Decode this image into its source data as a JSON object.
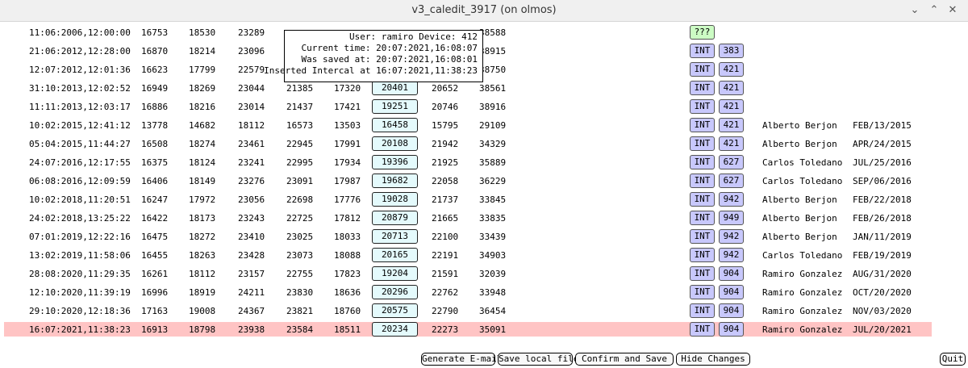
{
  "window": {
    "title": "v3_caledit_3917 (on olmos)",
    "minimize_glyph": "⌄",
    "maximize_glyph": "⌃",
    "close_glyph": "✕"
  },
  "rows": [
    {
      "date": "11:06:2006,12:00:00",
      "n1": "16753",
      "n2": "18530",
      "n3": "23289",
      "n4": "",
      "n5": "",
      "sel": "",
      "n6": "",
      "n7": "38588",
      "tag": "???",
      "dev": "",
      "name": "",
      "date2": ""
    },
    {
      "date": "21:06:2012,12:28:00",
      "n1": "16870",
      "n2": "18214",
      "n3": "23096",
      "n4": "",
      "n5": "",
      "sel": "",
      "n6": "",
      "n7": "38915",
      "tag": "INT",
      "dev": "383",
      "name": "",
      "date2": ""
    },
    {
      "date": "12:07:2012,12:01:36",
      "n1": "16623",
      "n2": "17799",
      "n3": "22579",
      "n4": "",
      "n5": "",
      "sel": "",
      "n6": "",
      "n7": "38750",
      "tag": "INT",
      "dev": "421",
      "name": "",
      "date2": ""
    },
    {
      "date": "31:10:2013,12:02:52",
      "n1": "16949",
      "n2": "18269",
      "n3": "23044",
      "n4": "21385",
      "n5": "17320",
      "sel": "20401",
      "n6": "20652",
      "n7": "38561",
      "tag": "INT",
      "dev": "421",
      "name": "",
      "date2": ""
    },
    {
      "date": "11:11:2013,12:03:17",
      "n1": "16886",
      "n2": "18216",
      "n3": "23014",
      "n4": "21437",
      "n5": "17421",
      "sel": "19251",
      "n6": "20746",
      "n7": "38916",
      "tag": "INT",
      "dev": "421",
      "name": "",
      "date2": ""
    },
    {
      "date": "10:02:2015,12:41:12",
      "n1": "13778",
      "n2": "14682",
      "n3": "18112",
      "n4": "16573",
      "n5": "13503",
      "sel": "16458",
      "n6": "15795",
      "n7": "29109",
      "tag": "INT",
      "dev": "421",
      "name": "Alberto Berjon",
      "date2": "FEB/13/2015"
    },
    {
      "date": "05:04:2015,11:44:27",
      "n1": "16508",
      "n2": "18274",
      "n3": "23461",
      "n4": "22945",
      "n5": "17991",
      "sel": "20108",
      "n6": "21942",
      "n7": "34329",
      "tag": "INT",
      "dev": "421",
      "name": "Alberto Berjon",
      "date2": "APR/24/2015"
    },
    {
      "date": "24:07:2016,12:17:55",
      "n1": "16375",
      "n2": "18124",
      "n3": "23241",
      "n4": "22995",
      "n5": "17934",
      "sel": "19396",
      "n6": "21925",
      "n7": "35889",
      "tag": "INT",
      "dev": "627",
      "name": "Carlos Toledano",
      "date2": "JUL/25/2016"
    },
    {
      "date": "06:08:2016,12:09:59",
      "n1": "16406",
      "n2": "18149",
      "n3": "23276",
      "n4": "23091",
      "n5": "17987",
      "sel": "19682",
      "n6": "22058",
      "n7": "36229",
      "tag": "INT",
      "dev": "627",
      "name": "Carlos Toledano",
      "date2": "SEP/06/2016"
    },
    {
      "date": "10:02:2018,11:20:51",
      "n1": "16247",
      "n2": "17972",
      "n3": "23056",
      "n4": "22698",
      "n5": "17776",
      "sel": "19028",
      "n6": "21737",
      "n7": "33845",
      "tag": "INT",
      "dev": "942",
      "name": "Alberto Berjon",
      "date2": "FEB/22/2018"
    },
    {
      "date": "24:02:2018,13:25:22",
      "n1": "16422",
      "n2": "18173",
      "n3": "23243",
      "n4": "22725",
      "n5": "17812",
      "sel": "20879",
      "n6": "21665",
      "n7": "33835",
      "tag": "INT",
      "dev": "949",
      "name": "Alberto Berjon",
      "date2": "FEB/26/2018"
    },
    {
      "date": "07:01:2019,12:22:16",
      "n1": "16475",
      "n2": "18272",
      "n3": "23410",
      "n4": "23025",
      "n5": "18033",
      "sel": "20713",
      "n6": "22100",
      "n7": "33439",
      "tag": "INT",
      "dev": "942",
      "name": "Alberto Berjon",
      "date2": "JAN/11/2019"
    },
    {
      "date": "13:02:2019,11:58:06",
      "n1": "16455",
      "n2": "18263",
      "n3": "23428",
      "n4": "23073",
      "n5": "18088",
      "sel": "20165",
      "n6": "22191",
      "n7": "34903",
      "tag": "INT",
      "dev": "942",
      "name": "Carlos Toledano",
      "date2": "FEB/19/2019"
    },
    {
      "date": "28:08:2020,11:29:35",
      "n1": "16261",
      "n2": "18112",
      "n3": "23157",
      "n4": "22755",
      "n5": "17823",
      "sel": "19204",
      "n6": "21591",
      "n7": "32039",
      "tag": "INT",
      "dev": "904",
      "name": "Ramiro Gonzalez",
      "date2": "AUG/31/2020"
    },
    {
      "date": "12:10:2020,11:39:19",
      "n1": "16996",
      "n2": "18919",
      "n3": "24211",
      "n4": "23830",
      "n5": "18636",
      "sel": "20296",
      "n6": "22762",
      "n7": "33948",
      "tag": "INT",
      "dev": "904",
      "name": "Ramiro Gonzalez",
      "date2": "OCT/20/2020"
    },
    {
      "date": "29:10:2020,12:18:36",
      "n1": "17163",
      "n2": "19008",
      "n3": "24367",
      "n4": "23821",
      "n5": "18760",
      "sel": "20575",
      "n6": "22790",
      "n7": "36454",
      "tag": "INT",
      "dev": "904",
      "name": "Ramiro Gonzalez",
      "date2": "NOV/03/2020"
    },
    {
      "date": "16:07:2021,11:38:23",
      "n1": "16913",
      "n2": "18798",
      "n3": "23938",
      "n4": "23584",
      "n5": "18511",
      "sel": "20234",
      "n6": "22273",
      "n7": "35091",
      "tag": "INT",
      "dev": "904",
      "name": "Ramiro Gonzalez",
      "date2": "JUL/20/2021",
      "highlight": true
    }
  ],
  "tooltip": {
    "line1": "User: ramiro Device: 412",
    "line2": "Current time: 20:07:2021,16:08:07",
    "line3": "Was saved at: 20:07:2021,16:08:01",
    "line4": "Inserted Intercal at 16:07:2021,11:38:23"
  },
  "buttons": {
    "generate_email": "Generate E-mail",
    "save_local": "Save local file",
    "confirm_save": "Confirm and Save",
    "hide_changes": "Hide Changes",
    "quit": "Quit"
  },
  "colors": {
    "highlight_row": "#ffc4c4",
    "selected_cell": "#e4fafc",
    "int_tag": "#c8c8fc",
    "unknown_tag": "#ccfcc4"
  }
}
